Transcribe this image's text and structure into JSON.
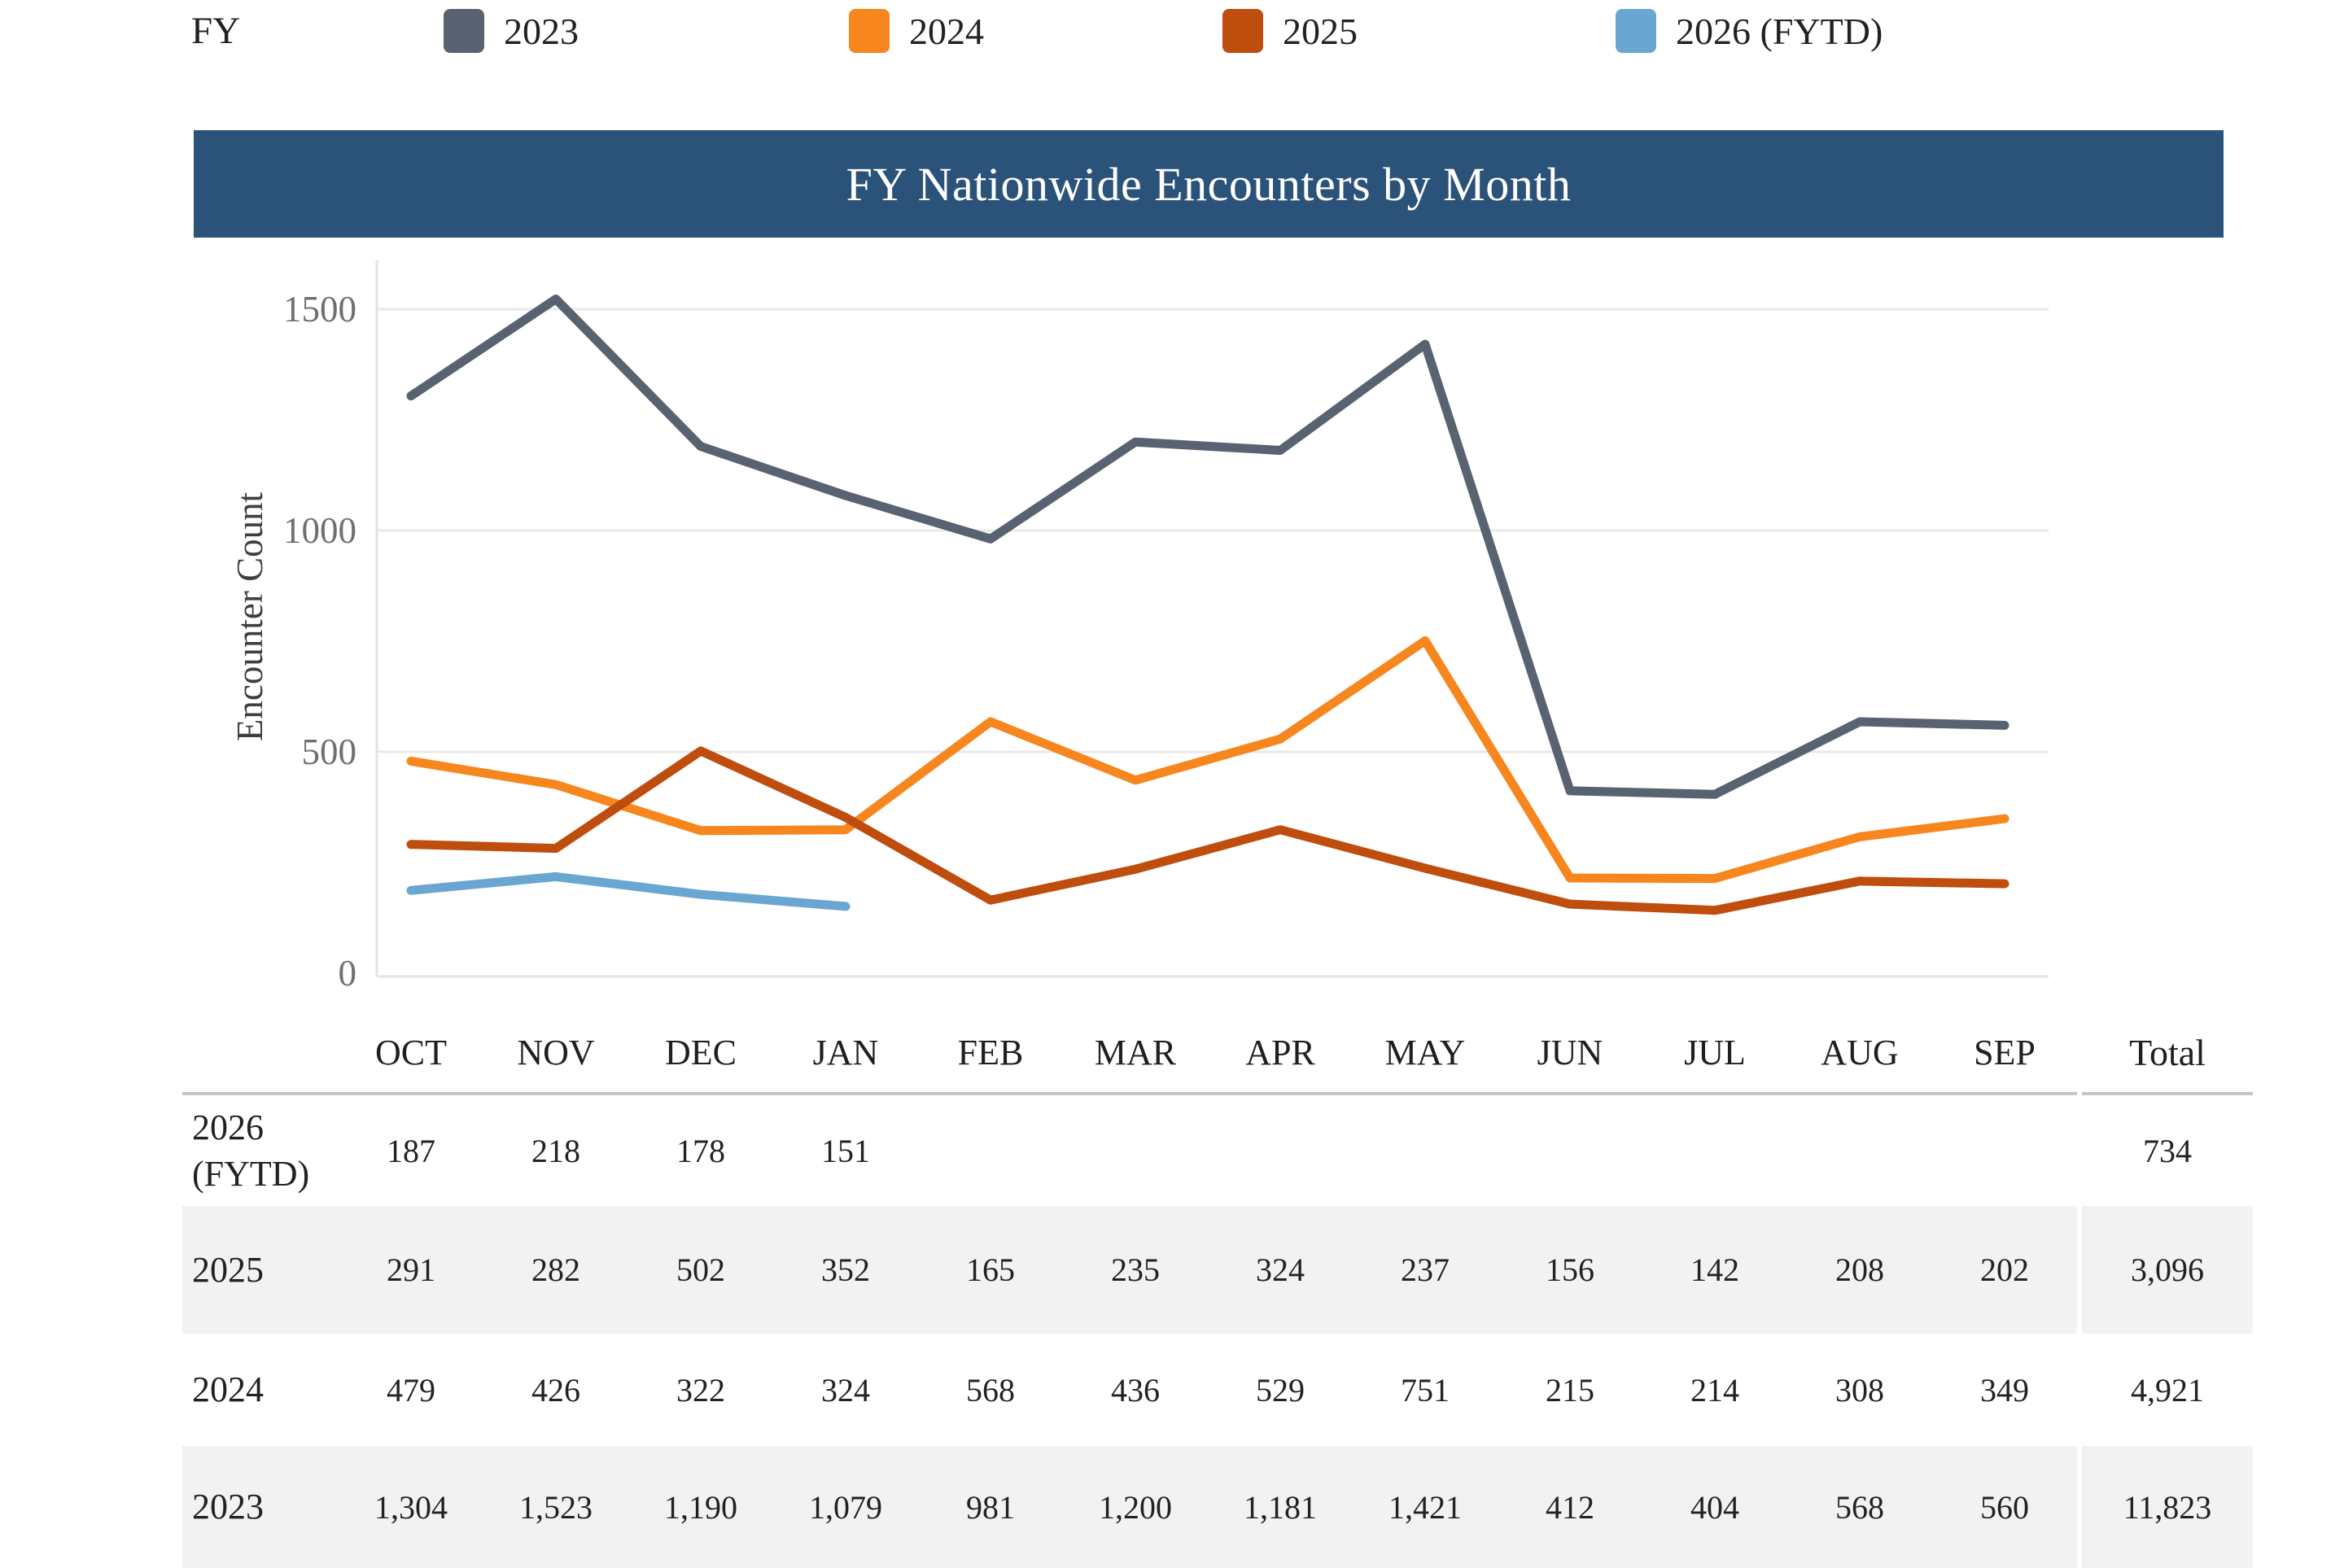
{
  "legend": {
    "prefix_label": "FY",
    "items": [
      {
        "label": "2023",
        "color": "#596270"
      },
      {
        "label": "2024",
        "color": "#f6861d"
      },
      {
        "label": "2025",
        "color": "#bf4d0e"
      },
      {
        "label": "2026 (FYTD)",
        "color": "#6aa6d2"
      }
    ]
  },
  "chart": {
    "title": "FY Nationwide Encounters by Month",
    "title_bar_color": "#2b5379",
    "y_axis_label": "Encounter Count",
    "y_ticks": [
      "0",
      "500",
      "1000",
      "1500"
    ]
  },
  "chart_data": {
    "type": "line",
    "title": "FY Nationwide Encounters by Month",
    "xlabel": "",
    "ylabel": "Encounter Count",
    "ylim": [
      0,
      1590
    ],
    "grid": true,
    "legend_position": "top",
    "categories": [
      "OCT",
      "NOV",
      "DEC",
      "JAN",
      "FEB",
      "MAR",
      "APR",
      "MAY",
      "JUN",
      "JUL",
      "AUG",
      "SEP"
    ],
    "series": [
      {
        "name": "2023",
        "color": "#596270",
        "values": [
          1304,
          1523,
          1190,
          1079,
          981,
          1200,
          1181,
          1421,
          412,
          404,
          568,
          560
        ],
        "total": 11823
      },
      {
        "name": "2024",
        "color": "#f6861d",
        "values": [
          479,
          426,
          322,
          324,
          568,
          436,
          529,
          751,
          215,
          214,
          308,
          349
        ],
        "total": 4921
      },
      {
        "name": "2025",
        "color": "#bf4d0e",
        "values": [
          291,
          282,
          502,
          352,
          165,
          235,
          324,
          237,
          156,
          142,
          208,
          202
        ],
        "total": 3096
      },
      {
        "name": "2026 (FYTD)",
        "color": "#6aa6d2",
        "values": [
          187,
          218,
          178,
          151,
          null,
          null,
          null,
          null,
          null,
          null,
          null,
          null
        ],
        "total": 734
      }
    ]
  },
  "table": {
    "columns": [
      "OCT",
      "NOV",
      "DEC",
      "JAN",
      "FEB",
      "MAR",
      "APR",
      "MAY",
      "JUN",
      "JUL",
      "AUG",
      "SEP"
    ],
    "total_label": "Total",
    "stripe_color": "#f2f2f2",
    "rows": [
      {
        "label": "2026 (FYTD)",
        "shaded": false,
        "values": [
          "187",
          "218",
          "178",
          "151",
          "",
          "",
          "",
          "",
          "",
          "",
          "",
          ""
        ],
        "total": "734"
      },
      {
        "label": "2025",
        "shaded": true,
        "values": [
          "291",
          "282",
          "502",
          "352",
          "165",
          "235",
          "324",
          "237",
          "156",
          "142",
          "208",
          "202"
        ],
        "total": "3,096"
      },
      {
        "label": "2024",
        "shaded": false,
        "values": [
          "479",
          "426",
          "322",
          "324",
          "568",
          "436",
          "529",
          "751",
          "215",
          "214",
          "308",
          "349"
        ],
        "total": "4,921"
      },
      {
        "label": "2023",
        "shaded": true,
        "values": [
          "1,304",
          "1,523",
          "1,190",
          "1,079",
          "981",
          "1,200",
          "1,181",
          "1,421",
          "412",
          "404",
          "568",
          "560"
        ],
        "total": "11,823"
      }
    ]
  }
}
